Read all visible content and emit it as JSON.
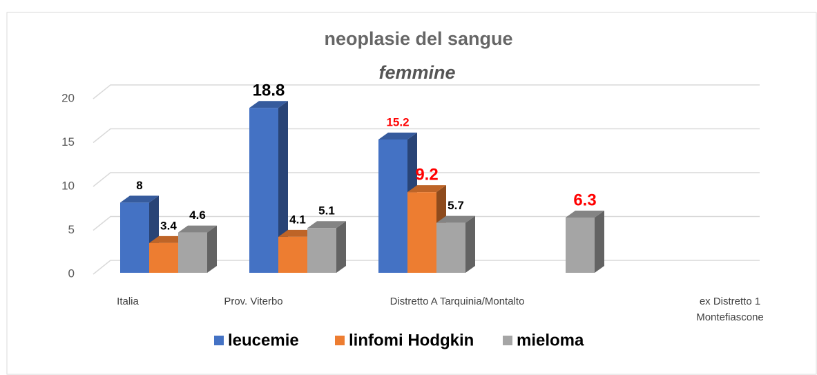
{
  "chart_data": {
    "type": "bar3d",
    "title": "neoplasie del sangue",
    "subtitle": "femmine",
    "categories": [
      "Italia",
      "Prov. Viterbo",
      "Distretto A Tarquinia/Montalto",
      "ex Distretto 1 Montefiascone"
    ],
    "series": [
      {
        "name": "leucemie",
        "color": "#4472c4",
        "values": [
          8,
          18.8,
          15.2,
          null
        ],
        "value_label_colors": [
          "#000000",
          "#000000",
          "#ff0000",
          null
        ]
      },
      {
        "name": "linfomi Hodgkin",
        "color": "#ed7d31",
        "values": [
          3.4,
          4.1,
          9.2,
          null
        ],
        "value_label_colors": [
          "#000000",
          "#000000",
          "#ff0000",
          null
        ]
      },
      {
        "name": "mieloma",
        "color": "#a5a5a5",
        "values": [
          4.6,
          5.1,
          5.7,
          6.3
        ],
        "value_label_colors": [
          "#000000",
          "#000000",
          "#000000",
          "#ff0000"
        ]
      }
    ],
    "ylim": [
      0,
      20
    ],
    "yticks": [
      0,
      5,
      10,
      15,
      20
    ],
    "grid": true,
    "legend": "bottom"
  }
}
